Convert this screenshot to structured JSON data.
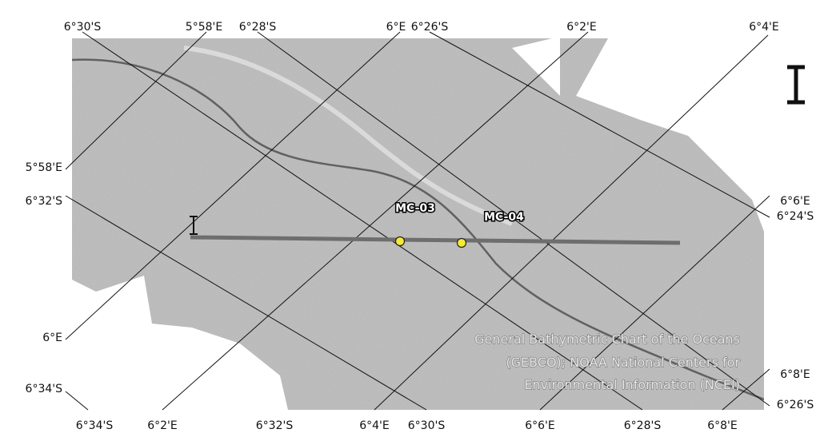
{
  "map": {
    "labels": {
      "top": [
        "6°30'S",
        "5°58'E",
        "6°28'S",
        "6°E",
        "6°26'S",
        "6°2'E",
        "6°4'E"
      ],
      "bottom": [
        "6°34'S",
        "6°2'E",
        "6°32'S",
        "6°4'E",
        "6°30'S",
        "6°6'E",
        "6°28'S",
        "6°8'E"
      ],
      "left": [
        "5°58'E",
        "6°32'S",
        "6°E",
        "6°34'S"
      ],
      "right": [
        "6°6'E",
        "6°24'S",
        "6°8'E",
        "6°26'S"
      ]
    },
    "sites": [
      {
        "label": "MC-03"
      },
      {
        "label": "MC-04"
      }
    ],
    "attribution": [
      "General Bathymetric Chart of the Oceans",
      "(GEBCO); NOAA National Centers for",
      "Environmental Information (NCEI)"
    ]
  }
}
